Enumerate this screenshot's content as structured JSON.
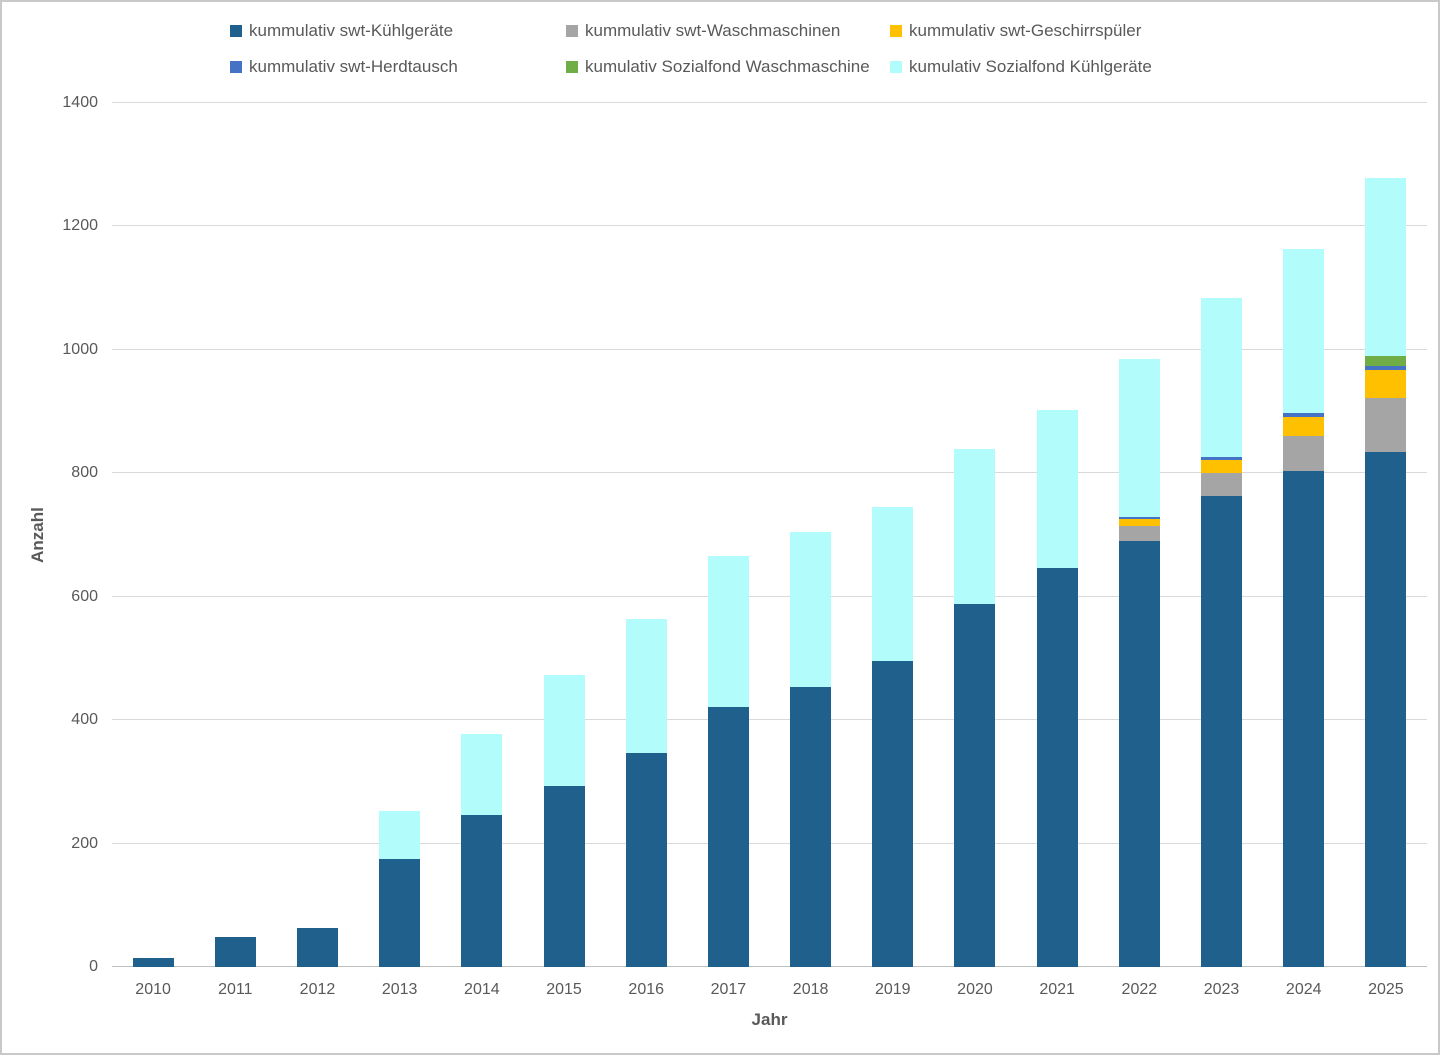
{
  "figure": {
    "background": "#FFFFFF",
    "border_color": "#C9C9C9",
    "text_color": "#595959",
    "gridline_color": "#D9D9D9",
    "axis_line_color": "#BFBFBF"
  },
  "chart_data": {
    "type": "bar",
    "stacked": true,
    "title": "",
    "xlabel": "Jahr",
    "ylabel": "Anzahl",
    "ylim": [
      0,
      1400
    ],
    "ytick_step": 200,
    "grid": "horizontal",
    "legend_position": "top",
    "categories": [
      "2010",
      "2011",
      "2012",
      "2013",
      "2014",
      "2015",
      "2016",
      "2017",
      "2018",
      "2019",
      "2020",
      "2021",
      "2022",
      "2023",
      "2024",
      "2025"
    ],
    "series": [
      {
        "name": "kummulativ swt-Kühlgeräte",
        "color": "#1F618C",
        "values": [
          15,
          48,
          64,
          175,
          247,
          294,
          346,
          422,
          454,
          496,
          588,
          647,
          691,
          764,
          803,
          834
        ]
      },
      {
        "name": "kummulativ swt-Waschmaschinen",
        "color": "#A5A5A5",
        "values": [
          0,
          0,
          0,
          0,
          0,
          0,
          0,
          0,
          0,
          0,
          0,
          0,
          23,
          36,
          58,
          88
        ]
      },
      {
        "name": "kummulativ swt-Geschirrspüler",
        "color": "#FFC000",
        "values": [
          0,
          0,
          0,
          0,
          0,
          0,
          0,
          0,
          0,
          0,
          0,
          0,
          12,
          22,
          31,
          45
        ]
      },
      {
        "name": "kummulativ swt-Herdtausch",
        "color": "#4472C4",
        "values": [
          0,
          0,
          0,
          0,
          0,
          0,
          0,
          0,
          0,
          0,
          0,
          0,
          4,
          5,
          6,
          7
        ]
      },
      {
        "name": "kumulativ Sozialfond Waschmaschine",
        "color": "#70AD47",
        "values": [
          0,
          0,
          0,
          0,
          0,
          0,
          0,
          0,
          0,
          0,
          0,
          0,
          0,
          0,
          0,
          16
        ]
      },
      {
        "name": "kumulativ Sozialfond Kühlgeräte",
        "color": "#B2FCFC",
        "values": [
          0,
          0,
          0,
          78,
          131,
          179,
          218,
          244,
          251,
          250,
          252,
          255,
          255,
          257,
          266,
          288
        ]
      }
    ]
  }
}
